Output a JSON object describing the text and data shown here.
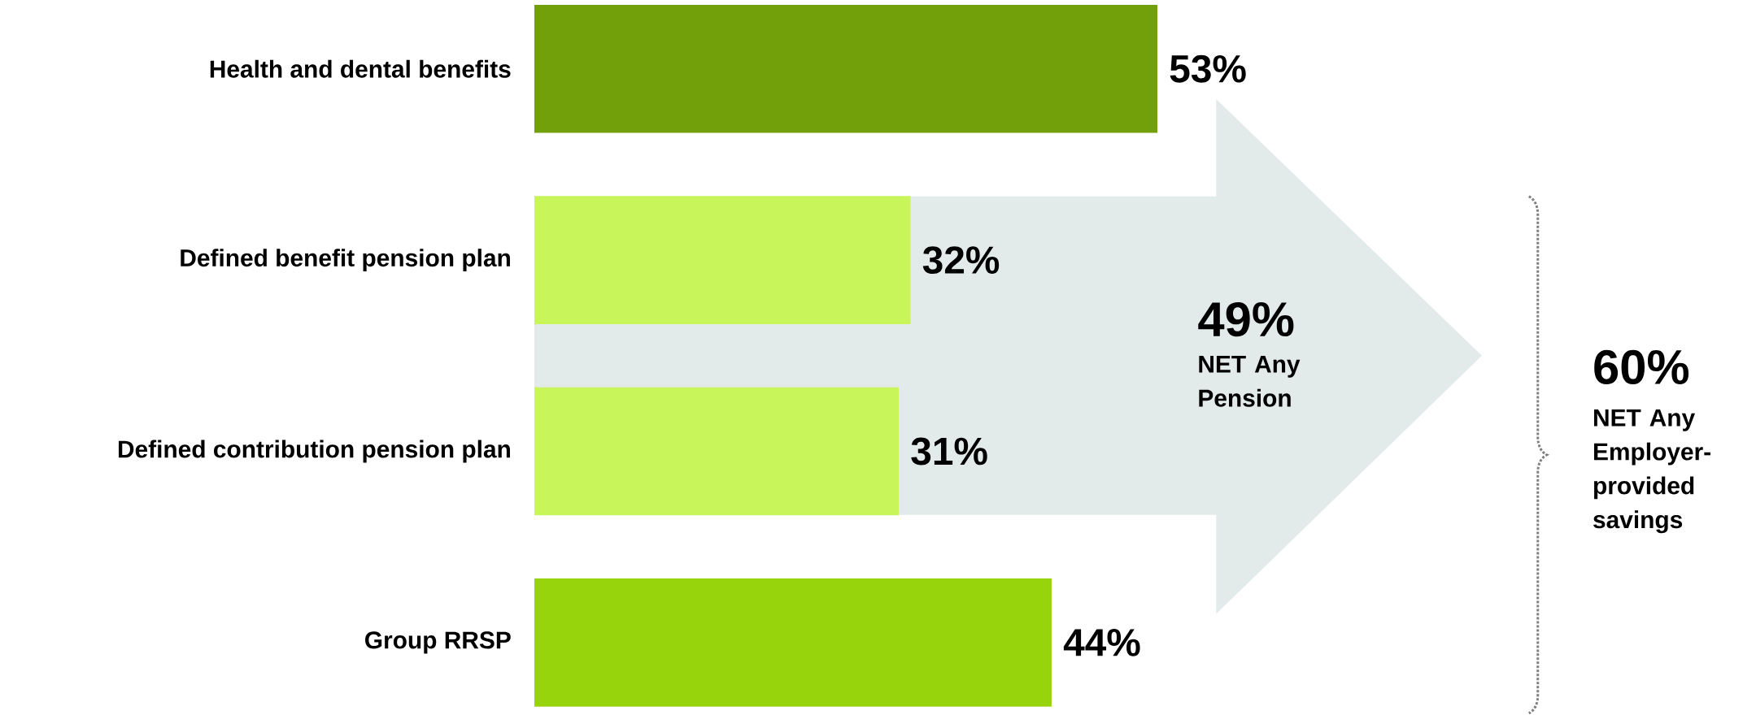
{
  "chart_data": {
    "type": "bar",
    "orientation": "horizontal",
    "categories": [
      "Health and dental benefits",
      "Defined benefit pension plan",
      "Defined contribution pension plan",
      "Group RRSP"
    ],
    "values": [
      53,
      32,
      31,
      44
    ],
    "colors": [
      "#72a00a",
      "#c8f55a",
      "#c8f55a",
      "#97d40c"
    ],
    "value_labels": [
      "53%",
      "32%",
      "31%",
      "44%"
    ],
    "annotations": [
      "49%",
      "NET Any Pension",
      "60%",
      "NET Any Employer-provided savings"
    ]
  }
}
